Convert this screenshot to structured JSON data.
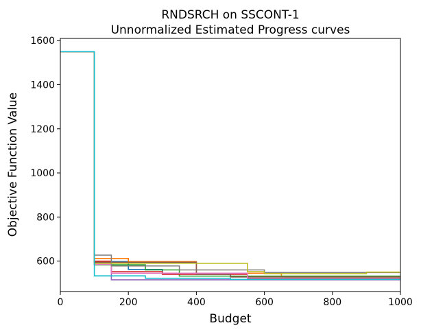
{
  "chart_data": {
    "type": "line",
    "step": true,
    "title": [
      "RNDSRCH on SSCONT-1",
      "Unnormalized Estimated Progress curves"
    ],
    "xlabel": "Budget",
    "ylabel": "Objective Function Value",
    "xlim": [
      0,
      1000
    ],
    "ylim": [
      462,
      1610
    ],
    "xticks": [
      0,
      200,
      400,
      600,
      800,
      1000
    ],
    "yticks": [
      600,
      800,
      1000,
      1200,
      1400,
      1600
    ],
    "grid": false,
    "legend": "none",
    "series": [
      {
        "color": "#1f77b4",
        "points": [
          [
            0,
            1550
          ],
          [
            100,
            1550
          ],
          [
            100,
            598
          ],
          [
            200,
            598
          ],
          [
            200,
            562
          ],
          [
            300,
            562
          ],
          [
            300,
            542
          ],
          [
            500,
            542
          ],
          [
            500,
            530
          ],
          [
            1000,
            530
          ]
        ]
      },
      {
        "color": "#ff7f0e",
        "points": [
          [
            0,
            1550
          ],
          [
            100,
            1550
          ],
          [
            100,
            612
          ],
          [
            200,
            612
          ],
          [
            200,
            598
          ],
          [
            400,
            598
          ],
          [
            400,
            545
          ],
          [
            650,
            545
          ],
          [
            650,
            528
          ],
          [
            1000,
            528
          ]
        ]
      },
      {
        "color": "#2ca02c",
        "points": [
          [
            0,
            1550
          ],
          [
            100,
            1550
          ],
          [
            100,
            583
          ],
          [
            250,
            583
          ],
          [
            250,
            560
          ],
          [
            350,
            560
          ],
          [
            350,
            532
          ],
          [
            1000,
            532
          ]
        ]
      },
      {
        "color": "#d62728",
        "points": [
          [
            0,
            1550
          ],
          [
            100,
            1550
          ],
          [
            100,
            600
          ],
          [
            150,
            600
          ],
          [
            150,
            552
          ],
          [
            300,
            552
          ],
          [
            300,
            540
          ],
          [
            550,
            540
          ],
          [
            550,
            522
          ],
          [
            1000,
            522
          ]
        ]
      },
      {
        "color": "#9467bd",
        "points": [
          [
            0,
            1550
          ],
          [
            100,
            1550
          ],
          [
            100,
            590
          ],
          [
            150,
            590
          ],
          [
            150,
            515
          ],
          [
            1000,
            515
          ]
        ]
      },
      {
        "color": "#8c564b",
        "points": [
          [
            0,
            1550
          ],
          [
            100,
            1550
          ],
          [
            100,
            595
          ],
          [
            400,
            595
          ],
          [
            400,
            540
          ],
          [
            500,
            540
          ],
          [
            500,
            528
          ],
          [
            1000,
            528
          ]
        ]
      },
      {
        "color": "#e377c2",
        "points": [
          [
            0,
            1550
          ],
          [
            100,
            1550
          ],
          [
            100,
            585
          ],
          [
            150,
            585
          ],
          [
            150,
            545
          ],
          [
            550,
            545
          ],
          [
            550,
            520
          ],
          [
            1000,
            520
          ]
        ]
      },
      {
        "color": "#7f7f7f",
        "points": [
          [
            0,
            1550
          ],
          [
            100,
            1550
          ],
          [
            100,
            627
          ],
          [
            150,
            627
          ],
          [
            150,
            578
          ],
          [
            350,
            578
          ],
          [
            350,
            560
          ],
          [
            600,
            560
          ],
          [
            600,
            548
          ],
          [
            1000,
            548
          ]
        ]
      },
      {
        "color": "#bcbd22",
        "points": [
          [
            0,
            1550
          ],
          [
            100,
            1550
          ],
          [
            100,
            590
          ],
          [
            550,
            590
          ],
          [
            550,
            552
          ],
          [
            600,
            552
          ],
          [
            600,
            543
          ],
          [
            900,
            543
          ],
          [
            900,
            550
          ],
          [
            1000,
            550
          ]
        ]
      },
      {
        "color": "#17becf",
        "points": [
          [
            0,
            1550
          ],
          [
            100,
            1550
          ],
          [
            100,
            533
          ],
          [
            250,
            533
          ],
          [
            250,
            522
          ],
          [
            500,
            522
          ],
          [
            500,
            517
          ],
          [
            1000,
            517
          ]
        ]
      }
    ]
  }
}
